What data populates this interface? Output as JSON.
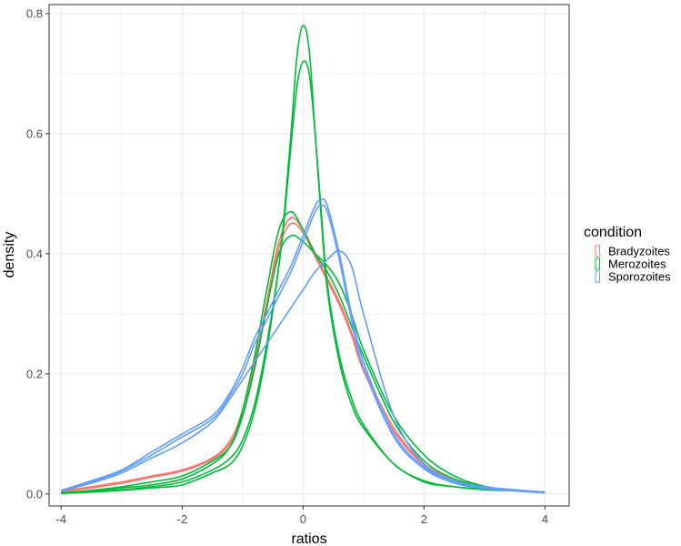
{
  "chart_data": {
    "type": "line",
    "title": "",
    "xlabel": "ratios",
    "ylabel": "density",
    "xlim": [
      -4.2,
      4.4
    ],
    "ylim": [
      -0.02,
      0.815
    ],
    "x_ticks": [
      -4,
      -2,
      0,
      2,
      4
    ],
    "x_tick_labels": [
      "-4",
      "-2",
      "0",
      "2",
      "4"
    ],
    "y_ticks": [
      0.0,
      0.2,
      0.4,
      0.6,
      0.8
    ],
    "y_tick_labels": [
      "0.0",
      "0.2",
      "0.4",
      "0.6",
      "0.8"
    ],
    "grid": true,
    "legend": {
      "title": "condition",
      "placement": "right",
      "entries": [
        {
          "label": "Bradyzoites",
          "color": "#F8766D"
        },
        {
          "label": "Merozoites",
          "color": "#00BA38"
        },
        {
          "label": "Sporozoites",
          "color": "#619CFF"
        }
      ]
    },
    "series": [
      {
        "group": "Bradyzoites",
        "color": "#F8766D",
        "x": [
          -4,
          -3.5,
          -3,
          -2.5,
          -2,
          -1.5,
          -1.2,
          -1,
          -0.8,
          -0.6,
          -0.4,
          -0.2,
          0,
          0.2,
          0.4,
          0.6,
          0.8,
          1,
          1.5,
          2,
          2.5,
          3,
          3.5,
          4
        ],
        "y": [
          0.005,
          0.012,
          0.02,
          0.03,
          0.04,
          0.06,
          0.09,
          0.14,
          0.22,
          0.32,
          0.42,
          0.46,
          0.44,
          0.4,
          0.36,
          0.32,
          0.27,
          0.21,
          0.11,
          0.05,
          0.025,
          0.012,
          0.006,
          0.003
        ]
      },
      {
        "group": "Bradyzoites",
        "color": "#F8766D",
        "x": [
          -4,
          -3.5,
          -3,
          -2.5,
          -2,
          -1.5,
          -1.2,
          -1,
          -0.8,
          -0.6,
          -0.4,
          -0.2,
          0,
          0.2,
          0.4,
          0.6,
          0.8,
          1,
          1.5,
          2,
          2.5,
          3,
          3.5,
          4
        ],
        "y": [
          0.004,
          0.01,
          0.018,
          0.028,
          0.038,
          0.058,
          0.085,
          0.13,
          0.21,
          0.31,
          0.41,
          0.45,
          0.435,
          0.395,
          0.355,
          0.315,
          0.265,
          0.205,
          0.105,
          0.048,
          0.022,
          0.01,
          0.005,
          0.002
        ]
      },
      {
        "group": "Merozoites",
        "color": "#00BA38",
        "x": [
          -4,
          -3.5,
          -3,
          -2.5,
          -2,
          -1.5,
          -1.2,
          -1,
          -0.8,
          -0.6,
          -0.4,
          -0.3,
          -0.2,
          -0.1,
          0,
          0.1,
          0.2,
          0.3,
          0.4,
          0.6,
          0.8,
          1,
          1.5,
          2,
          2.5,
          3,
          3.5,
          4
        ],
        "y": [
          0.001,
          0.003,
          0.006,
          0.01,
          0.015,
          0.035,
          0.05,
          0.08,
          0.14,
          0.24,
          0.38,
          0.48,
          0.6,
          0.73,
          0.78,
          0.74,
          0.6,
          0.46,
          0.34,
          0.22,
          0.15,
          0.11,
          0.05,
          0.02,
          0.012,
          0.008,
          0.006,
          0.003
        ]
      },
      {
        "group": "Merozoites",
        "color": "#00BA38",
        "x": [
          -4,
          -3.5,
          -3,
          -2.5,
          -2,
          -1.5,
          -1.2,
          -1,
          -0.8,
          -0.6,
          -0.4,
          -0.3,
          -0.2,
          -0.1,
          0,
          0.1,
          0.2,
          0.3,
          0.4,
          0.6,
          0.8,
          1,
          1.5,
          2,
          2.5,
          3,
          3.5,
          4
        ],
        "y": [
          0.001,
          0.004,
          0.007,
          0.012,
          0.02,
          0.04,
          0.06,
          0.09,
          0.15,
          0.25,
          0.38,
          0.47,
          0.58,
          0.68,
          0.72,
          0.7,
          0.6,
          0.47,
          0.35,
          0.23,
          0.16,
          0.115,
          0.05,
          0.022,
          0.012,
          0.007,
          0.005,
          0.002
        ]
      },
      {
        "group": "Merozoites",
        "color": "#00BA38",
        "x": [
          -4,
          -3.5,
          -3,
          -2.5,
          -2,
          -1.5,
          -1.2,
          -1,
          -0.8,
          -0.6,
          -0.4,
          -0.2,
          0,
          0.2,
          0.4,
          0.6,
          0.8,
          1,
          1.5,
          2,
          2.5,
          3,
          3.5,
          4
        ],
        "y": [
          0.002,
          0.005,
          0.01,
          0.015,
          0.025,
          0.05,
          0.08,
          0.14,
          0.23,
          0.34,
          0.44,
          0.47,
          0.44,
          0.4,
          0.37,
          0.33,
          0.28,
          0.23,
          0.12,
          0.055,
          0.025,
          0.012,
          0.006,
          0.003
        ]
      },
      {
        "group": "Merozoites",
        "color": "#00BA38",
        "x": [
          -4,
          -3.5,
          -3,
          -2.5,
          -2,
          -1.5,
          -1.2,
          -1,
          -0.8,
          -0.6,
          -0.4,
          -0.2,
          0,
          0.2,
          0.4,
          0.6,
          0.8,
          1,
          1.5,
          2,
          2.5,
          3,
          3.5,
          4
        ],
        "y": [
          0.002,
          0.006,
          0.012,
          0.02,
          0.03,
          0.055,
          0.08,
          0.13,
          0.21,
          0.31,
          0.4,
          0.43,
          0.42,
          0.4,
          0.38,
          0.35,
          0.3,
          0.24,
          0.13,
          0.065,
          0.03,
          0.013,
          0.006,
          0.003
        ]
      },
      {
        "group": "Sporozoites",
        "color": "#619CFF",
        "x": [
          -4,
          -3.5,
          -3,
          -2.5,
          -2,
          -1.5,
          -1.2,
          -1,
          -0.8,
          -0.6,
          -0.4,
          -0.2,
          0,
          0.2,
          0.3,
          0.4,
          0.6,
          0.8,
          1,
          1.5,
          2,
          2.5,
          3,
          3.5,
          4
        ],
        "y": [
          0.006,
          0.022,
          0.04,
          0.07,
          0.1,
          0.13,
          0.17,
          0.21,
          0.26,
          0.3,
          0.34,
          0.38,
          0.43,
          0.48,
          0.49,
          0.48,
          0.4,
          0.3,
          0.22,
          0.1,
          0.045,
          0.02,
          0.01,
          0.006,
          0.003
        ]
      },
      {
        "group": "Sporozoites",
        "color": "#619CFF",
        "x": [
          -4,
          -3.5,
          -3,
          -2.5,
          -2,
          -1.5,
          -1.2,
          -1,
          -0.8,
          -0.6,
          -0.4,
          -0.2,
          0,
          0.2,
          0.4,
          0.6,
          0.8,
          1,
          1.5,
          2,
          2.5,
          3,
          3.5,
          4
        ],
        "y": [
          0.005,
          0.018,
          0.035,
          0.06,
          0.085,
          0.12,
          0.16,
          0.19,
          0.22,
          0.25,
          0.28,
          0.31,
          0.34,
          0.37,
          0.39,
          0.405,
          0.38,
          0.3,
          0.13,
          0.05,
          0.022,
          0.012,
          0.007,
          0.003
        ]
      },
      {
        "group": "Sporozoites",
        "color": "#619CFF",
        "x": [
          -4,
          -3.5,
          -3,
          -2.5,
          -2,
          -1.5,
          -1.2,
          -1,
          -0.8,
          -0.6,
          -0.4,
          -0.2,
          0,
          0.2,
          0.3,
          0.4,
          0.6,
          0.8,
          1,
          1.5,
          2,
          2.5,
          3,
          3.5,
          4
        ],
        "y": [
          0.005,
          0.02,
          0.038,
          0.065,
          0.095,
          0.125,
          0.165,
          0.2,
          0.25,
          0.29,
          0.33,
          0.37,
          0.42,
          0.47,
          0.48,
          0.47,
          0.39,
          0.29,
          0.21,
          0.095,
          0.042,
          0.018,
          0.009,
          0.005,
          0.002
        ]
      }
    ]
  }
}
